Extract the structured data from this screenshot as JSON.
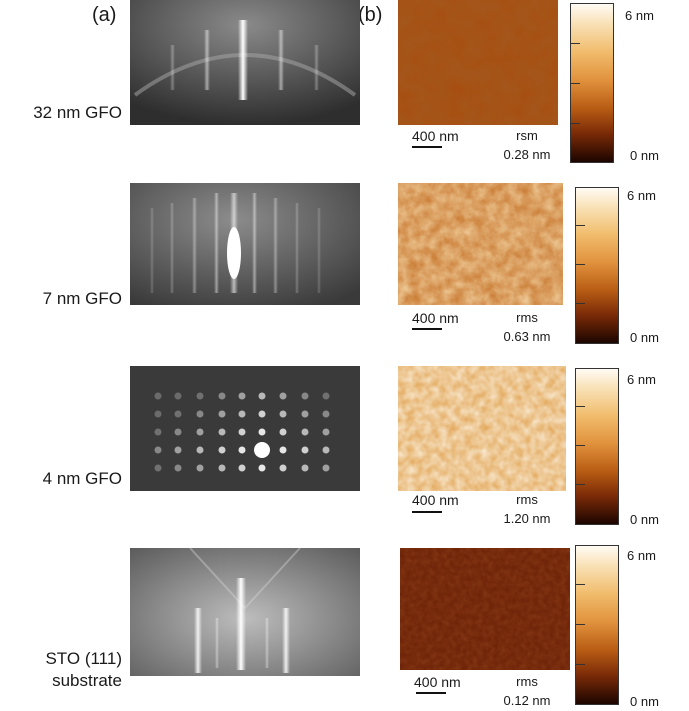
{
  "panels": {
    "a_label": "(a)",
    "b_label": "(b)"
  },
  "rows": [
    {
      "label": "32 nm GFO",
      "rms_name": "rsm",
      "rms_value": "0.28 nm",
      "scale_label": "400 nm",
      "cb_max": "6 nm",
      "cb_min": "0 nm",
      "afm_roughness": 0.28,
      "afm_colors": [
        "#a84d10",
        "#c86a1e",
        "#8a3a0a"
      ]
    },
    {
      "label": "7 nm GFO",
      "rms_name": "rms",
      "rms_value": "0.63 nm",
      "scale_label": "400 nm",
      "cb_max": "6 nm",
      "cb_min": "0 nm",
      "afm_roughness": 0.63,
      "afm_colors": [
        "#d98a34",
        "#f2c27a",
        "#b25c17"
      ]
    },
    {
      "label": "4 nm GFO",
      "rms_name": "rms",
      "rms_value": "1.20 nm",
      "scale_label": "400 nm",
      "cb_max": "6 nm",
      "cb_min": "0 nm",
      "afm_roughness": 1.2,
      "afm_colors": [
        "#f4cf8a",
        "#fff5dd",
        "#d48a33"
      ]
    },
    {
      "label_line1": "STO (111)",
      "label_line2": "substrate",
      "rms_name": "rms",
      "rms_value": "0.12 nm",
      "scale_label": "400 nm",
      "cb_max": "6 nm",
      "cb_min": "0 nm",
      "afm_roughness": 0.12,
      "afm_colors": [
        "#6a1e05",
        "#7d2808",
        "#5a1803"
      ]
    }
  ],
  "colors": {
    "colorbar_top": "#fffbf4",
    "colorbar_bottom": "#1c0500"
  }
}
